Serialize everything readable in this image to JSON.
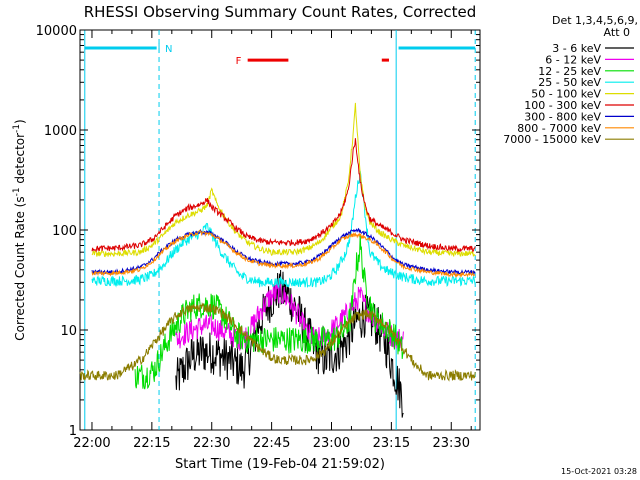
{
  "chart_data": {
    "type": "line",
    "title": "RHESSI Observing Summary Count Rates, Corrected",
    "xlabel": "Start Time (19-Feb-04 21:59:02)",
    "ylabel": "Corrected Count Rate (s⁻¹ detector⁻¹)",
    "ylabel_parts": {
      "main": "Corrected Count Rate (s",
      "sup1": "-1",
      "mid": " detector",
      "sup2": "-1",
      "end": ")"
    },
    "yscale": "log",
    "xlim": [
      21.95,
      23.62
    ],
    "ylim": [
      1,
      10000
    ],
    "x_ticks": [
      {
        "x": 22.0,
        "label": "22:00"
      },
      {
        "x": 22.25,
        "label": "22:15"
      },
      {
        "x": 22.5,
        "label": "22:30"
      },
      {
        "x": 22.75,
        "label": "22:45"
      },
      {
        "x": 23.0,
        "label": "23:00"
      },
      {
        "x": 23.25,
        "label": "23:15"
      },
      {
        "x": 23.5,
        "label": "23:30"
      }
    ],
    "y_ticks": [
      {
        "y": 1,
        "label": "1"
      },
      {
        "y": 10,
        "label": "10"
      },
      {
        "y": 100,
        "label": "100"
      },
      {
        "y": 1000,
        "label": "1000"
      },
      {
        "y": 10000,
        "label": "10000"
      }
    ],
    "legend_header": [
      "Det 1,3,4,5,6,9,",
      "Att 0"
    ],
    "legend_placement": "right",
    "series": [
      {
        "name": "3 - 6 keV",
        "color": "#000000",
        "x": [
          22.35,
          22.38,
          22.42,
          22.46,
          22.5,
          22.54,
          22.58,
          22.6,
          22.63,
          22.66,
          22.7,
          22.74,
          22.78,
          22.82,
          22.86,
          22.9,
          22.94,
          22.98,
          23.02,
          23.06,
          23.1,
          23.14,
          23.18,
          23.22,
          23.26,
          23.3
        ],
        "y": [
          3,
          4,
          5.5,
          6,
          6,
          5.5,
          5,
          4.5,
          4,
          6,
          12,
          19,
          25,
          22,
          15,
          9,
          6,
          5,
          6,
          7.5,
          12,
          14,
          12,
          8,
          4,
          2
        ]
      },
      {
        "name": "6 - 12 keV",
        "color": "#ee00ee",
        "x": [
          22.35,
          22.38,
          22.42,
          22.46,
          22.5,
          22.54,
          22.58,
          22.6,
          22.63,
          22.66,
          22.7,
          22.74,
          22.78,
          22.82,
          22.86,
          22.9,
          22.94,
          22.98,
          23.02,
          23.06,
          23.1,
          23.12,
          23.14,
          23.18,
          23.22,
          23.26,
          23.3
        ],
        "y": [
          8,
          9,
          10,
          11,
          11,
          10,
          9,
          8.5,
          8,
          10,
          15,
          21,
          24,
          20,
          14,
          9,
          8,
          9,
          11,
          14,
          19,
          22,
          17,
          13,
          10,
          8.5,
          8
        ]
      },
      {
        "name": "12 - 25 keV",
        "color": "#00dd00",
        "x": [
          22.18,
          22.22,
          22.26,
          22.3,
          22.34,
          22.38,
          22.42,
          22.46,
          22.5,
          22.54,
          22.58,
          22.6,
          22.64,
          22.68,
          22.72,
          22.76,
          22.8,
          22.84,
          22.88,
          22.92,
          22.96,
          23.0,
          23.04,
          23.08,
          23.1,
          23.12,
          23.14,
          23.18,
          23.22,
          23.26,
          23.3
        ],
        "y": [
          3.5,
          3.5,
          4,
          6.5,
          10,
          14,
          17,
          18,
          18,
          15,
          11,
          9,
          8,
          8,
          8,
          8,
          8,
          8,
          8,
          8,
          8,
          8,
          9,
          13,
          38,
          70,
          28,
          13,
          11,
          9,
          6
        ]
      },
      {
        "name": "25 - 50 keV",
        "color": "#00eeee",
        "x": [
          22.0,
          22.05,
          22.1,
          22.15,
          22.2,
          22.25,
          22.3,
          22.34,
          22.38,
          22.42,
          22.46,
          22.48,
          22.5,
          22.54,
          22.58,
          22.62,
          22.66,
          22.7,
          22.74,
          22.78,
          22.82,
          22.86,
          22.9,
          22.94,
          22.98,
          23.02,
          23.06,
          23.08,
          23.1,
          23.12,
          23.14,
          23.16,
          23.2,
          23.24,
          23.3,
          23.35,
          23.4,
          23.45,
          23.5,
          23.55,
          23.6
        ],
        "y": [
          31,
          31,
          31,
          31,
          32,
          35,
          45,
          60,
          75,
          85,
          95,
          110,
          90,
          60,
          45,
          35,
          32,
          30,
          30,
          30,
          30,
          30,
          30,
          30,
          32,
          40,
          60,
          90,
          210,
          380,
          150,
          60,
          45,
          38,
          34,
          32,
          31,
          31,
          31,
          31,
          31
        ]
      },
      {
        "name": "50 - 100 keV",
        "color": "#dddd00",
        "x": [
          22.0,
          22.1,
          22.2,
          22.25,
          22.3,
          22.35,
          22.4,
          22.45,
          22.48,
          22.5,
          22.52,
          22.55,
          22.6,
          22.65,
          22.7,
          22.75,
          22.8,
          22.85,
          22.9,
          22.95,
          23.0,
          23.04,
          23.07,
          23.09,
          23.1,
          23.11,
          23.12,
          23.14,
          23.16,
          23.2,
          23.25,
          23.3,
          23.4,
          23.5,
          23.6
        ],
        "y": [
          58,
          58,
          60,
          70,
          90,
          120,
          140,
          155,
          175,
          250,
          185,
          140,
          95,
          75,
          65,
          60,
          60,
          60,
          65,
          75,
          105,
          140,
          300,
          900,
          1800,
          800,
          350,
          170,
          120,
          95,
          80,
          70,
          60,
          58,
          58
        ]
      },
      {
        "name": "100 - 300 keV",
        "color": "#dd0000",
        "x": [
          22.0,
          22.1,
          22.2,
          22.25,
          22.3,
          22.35,
          22.4,
          22.45,
          22.48,
          22.5,
          22.55,
          22.6,
          22.65,
          22.7,
          22.75,
          22.8,
          22.85,
          22.9,
          22.95,
          23.0,
          23.04,
          23.07,
          23.09,
          23.1,
          23.11,
          23.12,
          23.14,
          23.16,
          23.2,
          23.25,
          23.3,
          23.4,
          23.5,
          23.6
        ],
        "y": [
          65,
          66,
          70,
          80,
          105,
          140,
          165,
          180,
          200,
          170,
          135,
          105,
          85,
          78,
          75,
          75,
          75,
          78,
          90,
          110,
          150,
          250,
          600,
          800,
          500,
          300,
          180,
          130,
          110,
          95,
          80,
          70,
          65,
          65
        ]
      },
      {
        "name": "300 - 800 keV",
        "color": "#0000cc",
        "x": [
          22.0,
          22.1,
          22.2,
          22.25,
          22.3,
          22.35,
          22.4,
          22.45,
          22.5,
          22.55,
          22.6,
          22.65,
          22.7,
          22.75,
          22.8,
          22.85,
          22.9,
          22.95,
          23.0,
          23.04,
          23.08,
          23.1,
          23.12,
          23.14,
          23.18,
          23.22,
          23.26,
          23.3,
          23.4,
          23.5,
          23.6
        ],
        "y": [
          38,
          38,
          42,
          50,
          65,
          80,
          90,
          96,
          92,
          78,
          62,
          52,
          48,
          46,
          46,
          46,
          48,
          55,
          70,
          85,
          95,
          100,
          98,
          92,
          80,
          65,
          52,
          45,
          40,
          38,
          38
        ]
      },
      {
        "name": "800 - 7000 keV",
        "color": "#ff8800",
        "x": [
          22.0,
          22.1,
          22.2,
          22.25,
          22.3,
          22.35,
          22.4,
          22.45,
          22.5,
          22.55,
          22.6,
          22.65,
          22.7,
          22.75,
          22.8,
          22.85,
          22.9,
          22.95,
          23.0,
          23.04,
          23.08,
          23.1,
          23.12,
          23.14,
          23.18,
          23.22,
          23.26,
          23.3,
          23.4,
          23.5,
          23.6
        ],
        "y": [
          37,
          37,
          40,
          48,
          62,
          78,
          88,
          95,
          90,
          75,
          60,
          50,
          46,
          44,
          44,
          44,
          46,
          52,
          65,
          80,
          88,
          90,
          88,
          84,
          75,
          62,
          50,
          43,
          38,
          36,
          36
        ]
      },
      {
        "name": "7000 - 15000 keV",
        "color": "#8b7d00",
        "x": [
          21.95,
          22.05,
          22.1,
          22.14,
          22.18,
          22.22,
          22.26,
          22.3,
          22.34,
          22.38,
          22.42,
          22.46,
          22.5,
          22.54,
          22.58,
          22.62,
          22.66,
          22.7,
          22.74,
          22.78,
          22.82,
          22.86,
          22.9,
          22.94,
          22.98,
          23.02,
          23.06,
          23.1,
          23.14,
          23.18,
          23.22,
          23.26,
          23.3,
          23.35,
          23.4,
          23.45,
          23.5,
          23.6
        ],
        "y": [
          3.5,
          3.5,
          3.5,
          4,
          4.5,
          5.5,
          7.5,
          10,
          13,
          15.5,
          16.5,
          17,
          16.5,
          15,
          12.5,
          10,
          8,
          6.5,
          5.5,
          5,
          5,
          5,
          5,
          5.5,
          6.5,
          8.5,
          11,
          13.5,
          14.5,
          13.5,
          11.5,
          9,
          6.5,
          4.5,
          3.5,
          3.5,
          3.5,
          3.5
        ]
      }
    ],
    "annotations": [
      {
        "label": "N",
        "color": "#00ccee"
      },
      {
        "label": "F",
        "color": "#ee0000"
      }
    ],
    "timestamp": "15-Oct-2021 03:28"
  }
}
